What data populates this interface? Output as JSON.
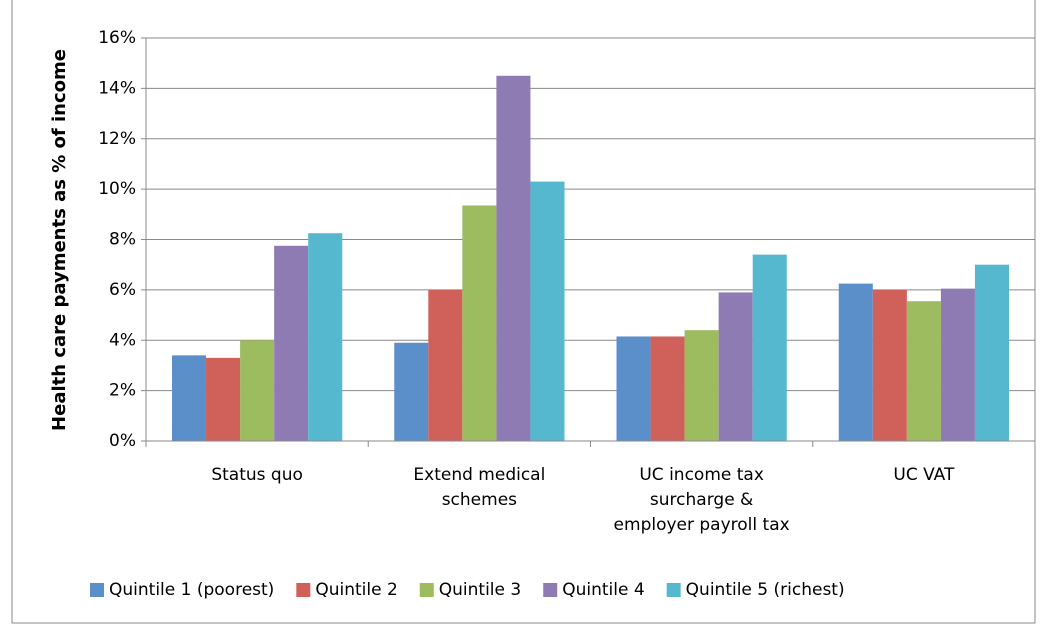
{
  "chart_data": {
    "type": "bar",
    "y_label": "Health care payments as % of income",
    "categories": [
      "Status quo",
      "Extend medical\nschemes",
      "UC income tax\nsurcharge &\nemployer payroll tax",
      "UC VAT"
    ],
    "series": [
      {
        "name": "Quintile 1 (poorest)",
        "color": "#5b8fc9",
        "values": [
          3.4,
          3.9,
          4.15,
          6.25
        ]
      },
      {
        "name": "Quintile 2",
        "color": "#d0605a",
        "values": [
          3.3,
          6.0,
          4.15,
          6.0
        ]
      },
      {
        "name": "Quintile 3",
        "color": "#9dbb5f",
        "values": [
          4.0,
          9.35,
          4.4,
          5.55
        ]
      },
      {
        "name": "Quintile 4",
        "color": "#8f7bb4",
        "values": [
          7.75,
          14.5,
          5.9,
          6.05
        ]
      },
      {
        "name": "Quintile 5 (richest)",
        "color": "#56b8cf",
        "values": [
          8.25,
          10.3,
          7.4,
          7.0
        ]
      }
    ],
    "ylim": [
      0,
      16
    ],
    "yticks": [
      {
        "value": 0,
        "label": "0%"
      },
      {
        "value": 2,
        "label": "2%"
      },
      {
        "value": 4,
        "label": "4%"
      },
      {
        "value": 6,
        "label": "6%"
      },
      {
        "value": 8,
        "label": "8%"
      },
      {
        "value": 10,
        "label": "10%"
      },
      {
        "value": 12,
        "label": "12%"
      },
      {
        "value": 14,
        "label": "14%"
      },
      {
        "value": 16,
        "label": "16%"
      }
    ],
    "grid": true,
    "legend": "bottom"
  }
}
